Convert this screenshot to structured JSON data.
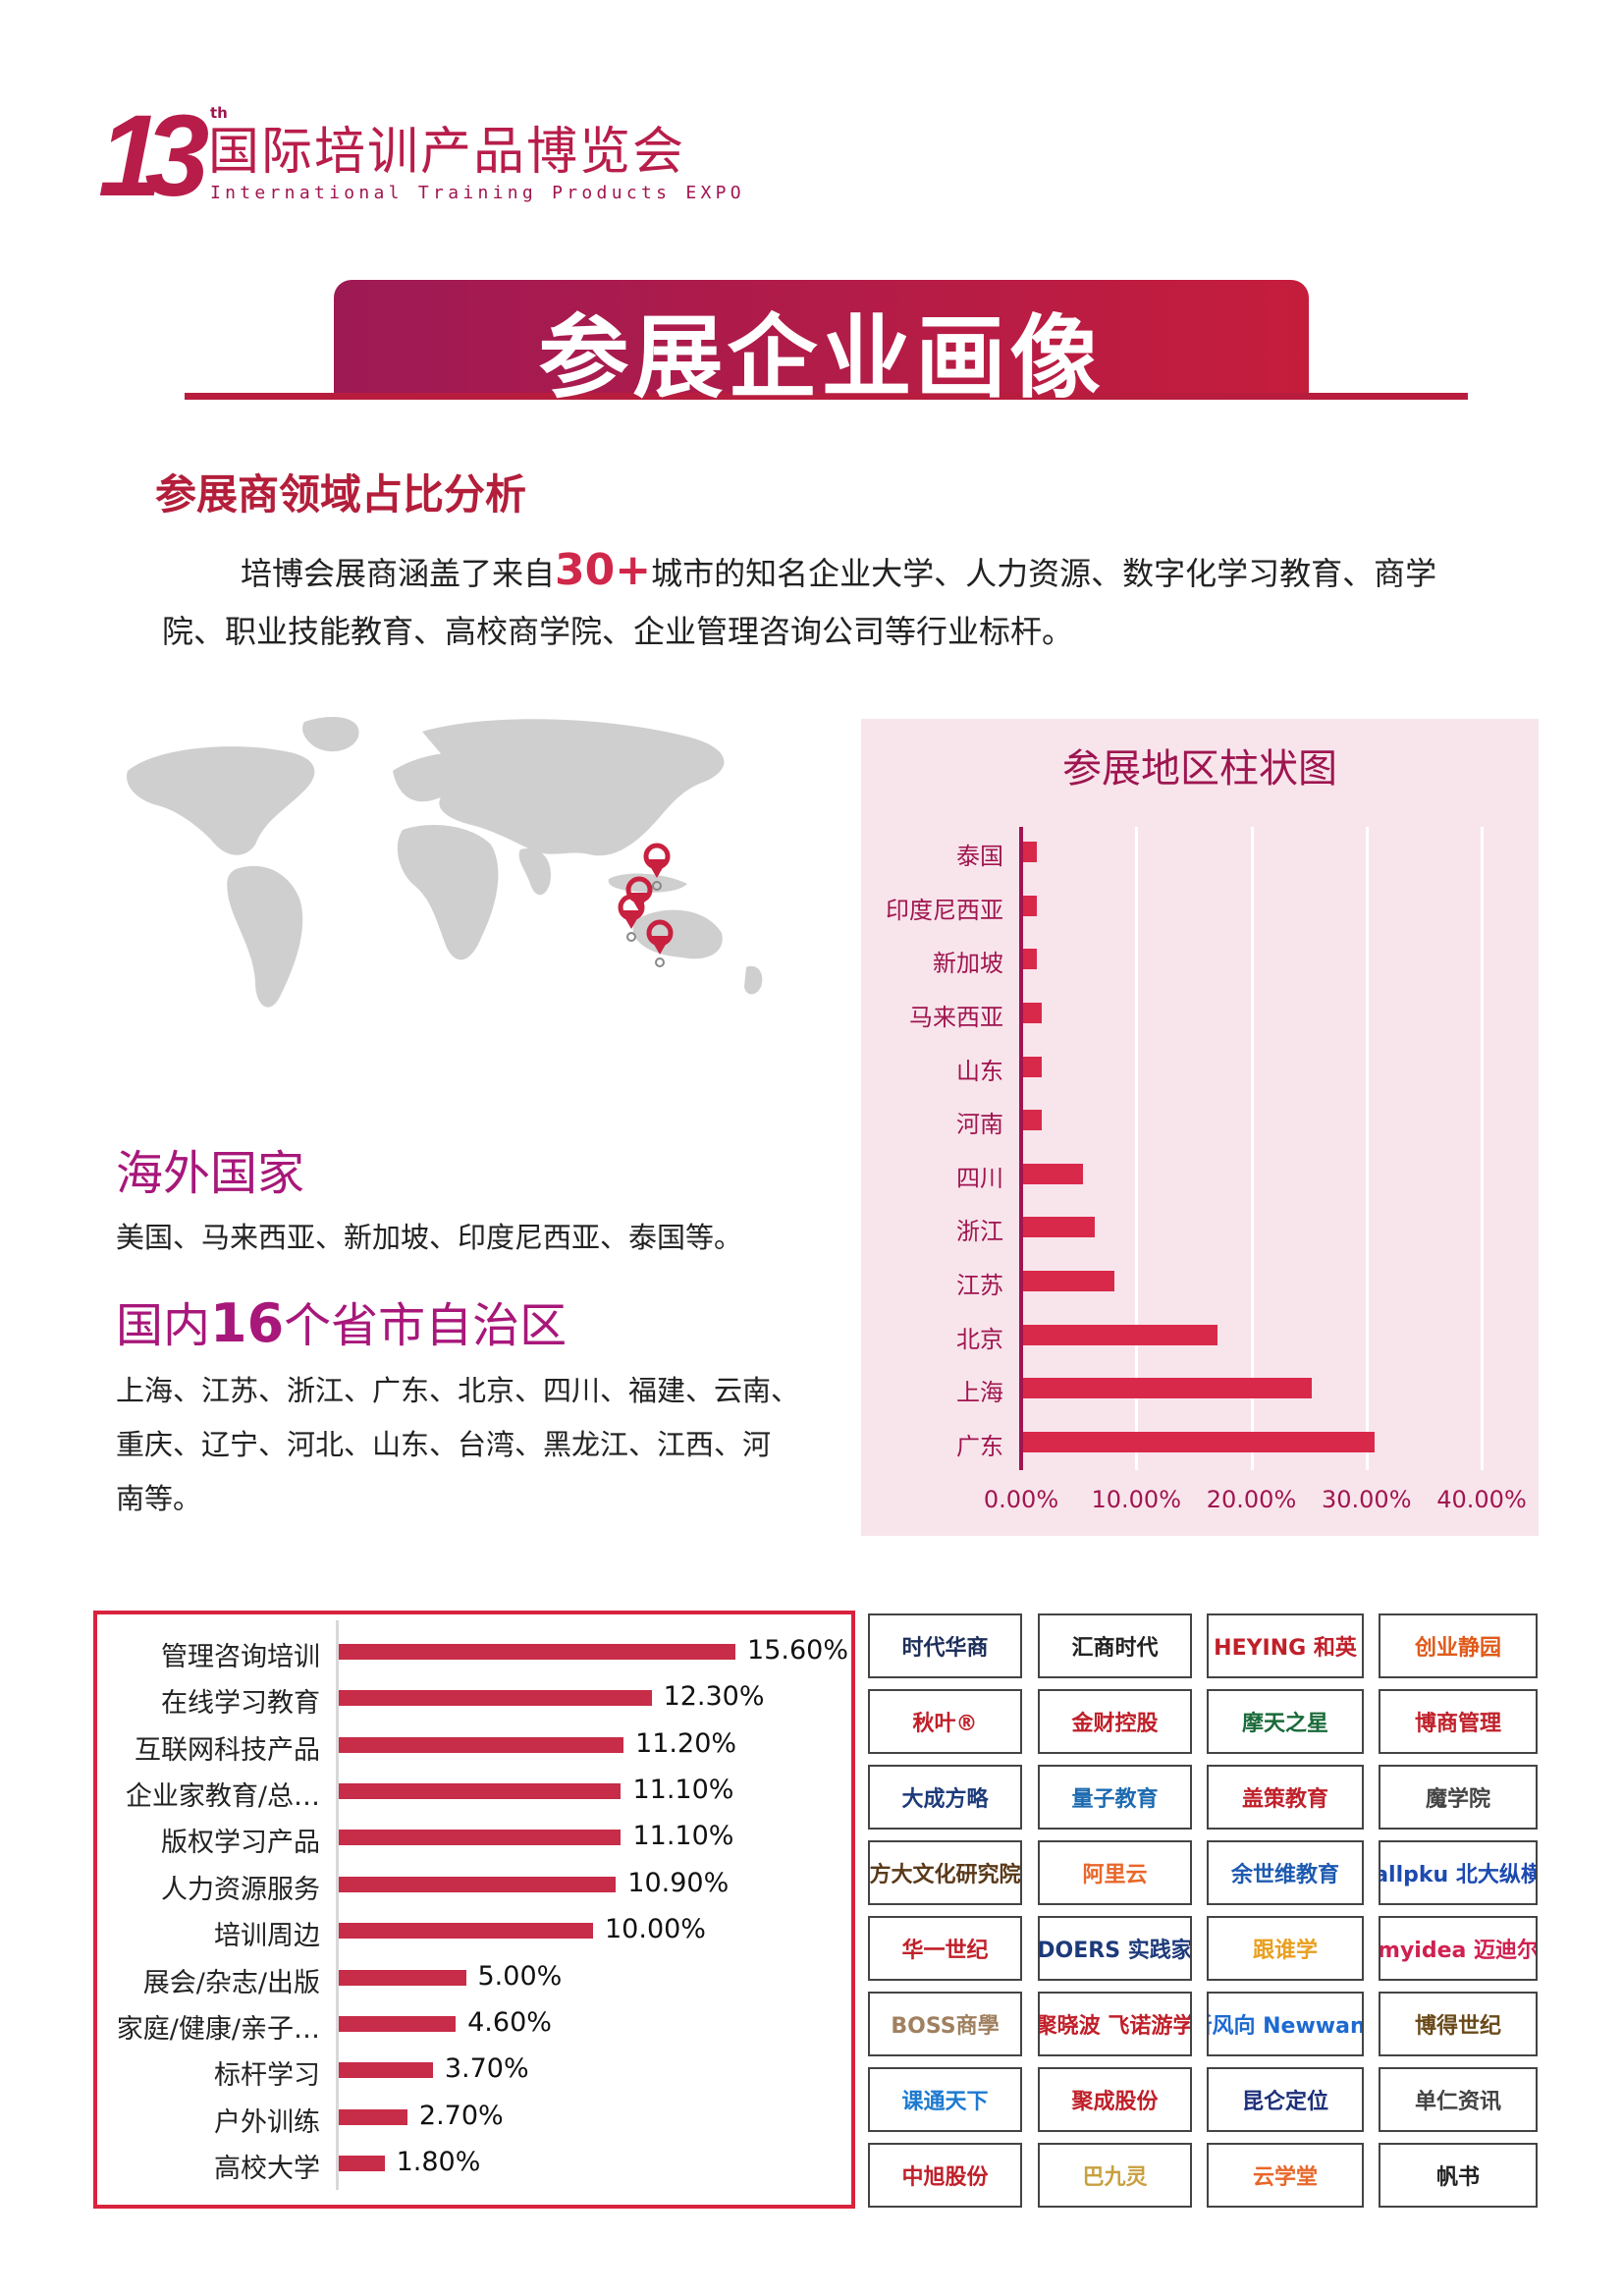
{
  "logo": {
    "number": "13",
    "suffix": "th",
    "title_cn": "国际培训产品博览会",
    "title_en": "International Training Products EXPO"
  },
  "banner": {
    "title": "参展企业画像"
  },
  "section": {
    "heading": "参展商领域占比分析",
    "para_line1_pre": "培博会展商涵盖了来自",
    "para_highlight": "30+",
    "para_line1_post": "城市的知名企业大学、人力资源、数字化学习教育、商学",
    "para_line2": "院、职业技能教育、高校商学院、企业管理咨询公司等行业标杆。"
  },
  "overseas": {
    "heading": "海外国家",
    "list": "美国、马来西亚、新加坡、印度尼西亚、泰国等。"
  },
  "domestic": {
    "heading_pre": "国内",
    "heading_num": "16",
    "heading_post": "个省市自治区",
    "lines": [
      "上海、江苏、浙江、广东、北京、四川、福建、云南、",
      "重庆、辽宁、河北、山东、台湾、黑龙江、江西、河",
      "南等。"
    ]
  },
  "colors": {
    "accent": "#b81d3e",
    "bar": "#d9294b",
    "panel": "#f8e5ec",
    "magenta": "#a8177a"
  },
  "chart_data": [
    {
      "type": "bar",
      "orientation": "horizontal",
      "title": "参展地区柱状图",
      "categories": [
        "泰国",
        "印度尼西亚",
        "新加坡",
        "马来西亚",
        "山东",
        "河南",
        "四川",
        "浙江",
        "江苏",
        "北京",
        "上海",
        "广东"
      ],
      "values": [
        1.2,
        1.2,
        1.2,
        1.6,
        1.6,
        1.6,
        5.2,
        6.2,
        7.9,
        16.9,
        25.1,
        30.5
      ],
      "xlim": [
        0,
        40
      ],
      "ticks": [
        "0.00%",
        "10.00%",
        "20.00%",
        "30.00%",
        "40.00%"
      ],
      "grid": true
    },
    {
      "type": "bar",
      "orientation": "horizontal",
      "categories": [
        "管理咨询培训",
        "在线学习教育",
        "互联网科技产品",
        "企业家教育/总…",
        "版权学习产品",
        "人力资源服务",
        "培训周边",
        "展会/杂志/出版",
        "家庭/健康/亲子…",
        "标杆学习",
        "户外训练",
        "高校大学"
      ],
      "values": [
        15.6,
        12.3,
        11.2,
        11.1,
        11.1,
        10.9,
        10.0,
        5.0,
        4.6,
        3.7,
        2.7,
        1.8
      ],
      "labels": [
        "15.60%",
        "12.30%",
        "11.20%",
        "11.10%",
        "11.10%",
        "10.90%",
        "10.00%",
        "5.00%",
        "4.60%",
        "3.70%",
        "2.70%",
        "1.80%"
      ]
    }
  ],
  "exhibitor_logos": [
    {
      "name": "时代华商",
      "color": "#1d2f5a"
    },
    {
      "name": "汇商时代",
      "color": "#222"
    },
    {
      "name": "HEYING 和英",
      "color": "#c0202a"
    },
    {
      "name": "创业静园",
      "color": "#e05a1a"
    },
    {
      "name": "秋叶®",
      "color": "#c0202a"
    },
    {
      "name": "金财控股",
      "color": "#c0202a"
    },
    {
      "name": "摩天之星",
      "color": "#1a6a3a"
    },
    {
      "name": "博商管理",
      "color": "#c0202a"
    },
    {
      "name": "大成方略",
      "color": "#1d3a7a"
    },
    {
      "name": "量子教育",
      "color": "#1d6ab0"
    },
    {
      "name": "盖策教育",
      "color": "#c0202a"
    },
    {
      "name": "魔学院",
      "color": "#444"
    },
    {
      "name": "方大文化研究院",
      "color": "#5a3a1a"
    },
    {
      "name": "阿里云",
      "color": "#e8672a"
    },
    {
      "name": "余世维教育",
      "color": "#1d5ab0"
    },
    {
      "name": "allpku 北大纵横",
      "color": "#1d4ab0"
    },
    {
      "name": "华一世纪",
      "color": "#c0202a"
    },
    {
      "name": "DOERS 实践家",
      "color": "#1d3a7a"
    },
    {
      "name": "跟谁学",
      "color": "#e8a020"
    },
    {
      "name": "myidea 迈迪尔",
      "color": "#d02050"
    },
    {
      "name": "BOSS商學",
      "color": "#a08060"
    },
    {
      "name": "聚晓波 飞诺游学",
      "color": "#c0202a"
    },
    {
      "name": "新风向 Newwane",
      "color": "#1d6ad0"
    },
    {
      "name": "博得世纪",
      "color": "#6a4a1a"
    },
    {
      "name": "课通天下",
      "color": "#1d7ad0"
    },
    {
      "name": "聚成股份",
      "color": "#c0202a"
    },
    {
      "name": "昆仑定位",
      "color": "#1d2f7a"
    },
    {
      "name": "单仁资讯",
      "color": "#444"
    },
    {
      "name": "中旭股份",
      "color": "#c0202a"
    },
    {
      "name": "巴九灵",
      "color": "#c8a040"
    },
    {
      "name": "云学堂",
      "color": "#e8672a"
    },
    {
      "name": "帆书",
      "color": "#222"
    }
  ]
}
